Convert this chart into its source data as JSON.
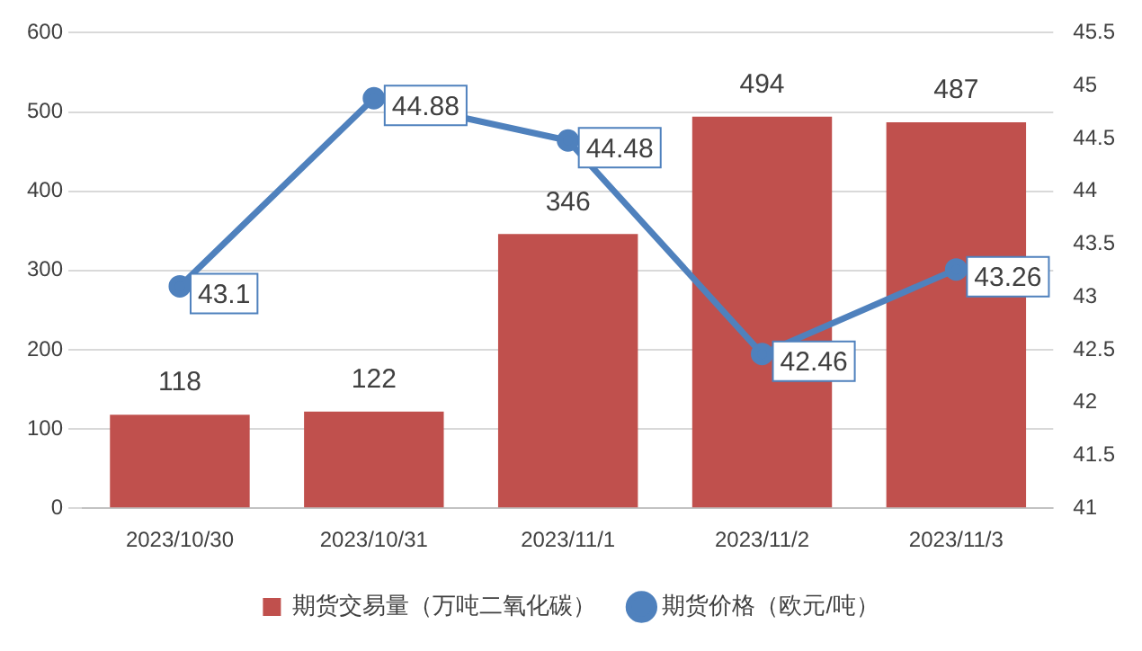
{
  "chart_data": {
    "type": "bar",
    "categories": [
      "2023/10/30",
      "2023/10/31",
      "2023/11/1",
      "2023/11/2",
      "2023/11/3"
    ],
    "series": [
      {
        "name": "期货交易量（万吨二氧化碳）",
        "color": "#c0504d",
        "values": [
          118,
          122,
          346,
          494,
          487
        ]
      },
      {
        "name": "期货价格（欧元/吨）",
        "type": "line",
        "axis": "y2",
        "color": "#4f81bd",
        "values": [
          43.1,
          44.88,
          44.48,
          42.46,
          43.26
        ]
      }
    ],
    "ylim": [
      0,
      600
    ],
    "yticks": [
      0,
      100,
      200,
      300,
      400,
      500,
      600
    ],
    "y2lim": [
      41,
      45.5
    ],
    "y2ticks": [
      41,
      41.5,
      42,
      42.5,
      43,
      43.5,
      44,
      44.5,
      45,
      45.5
    ],
    "grid": "y",
    "legend": "bottom",
    "marker": "circle",
    "line_style": "solid",
    "data_labels": true
  }
}
